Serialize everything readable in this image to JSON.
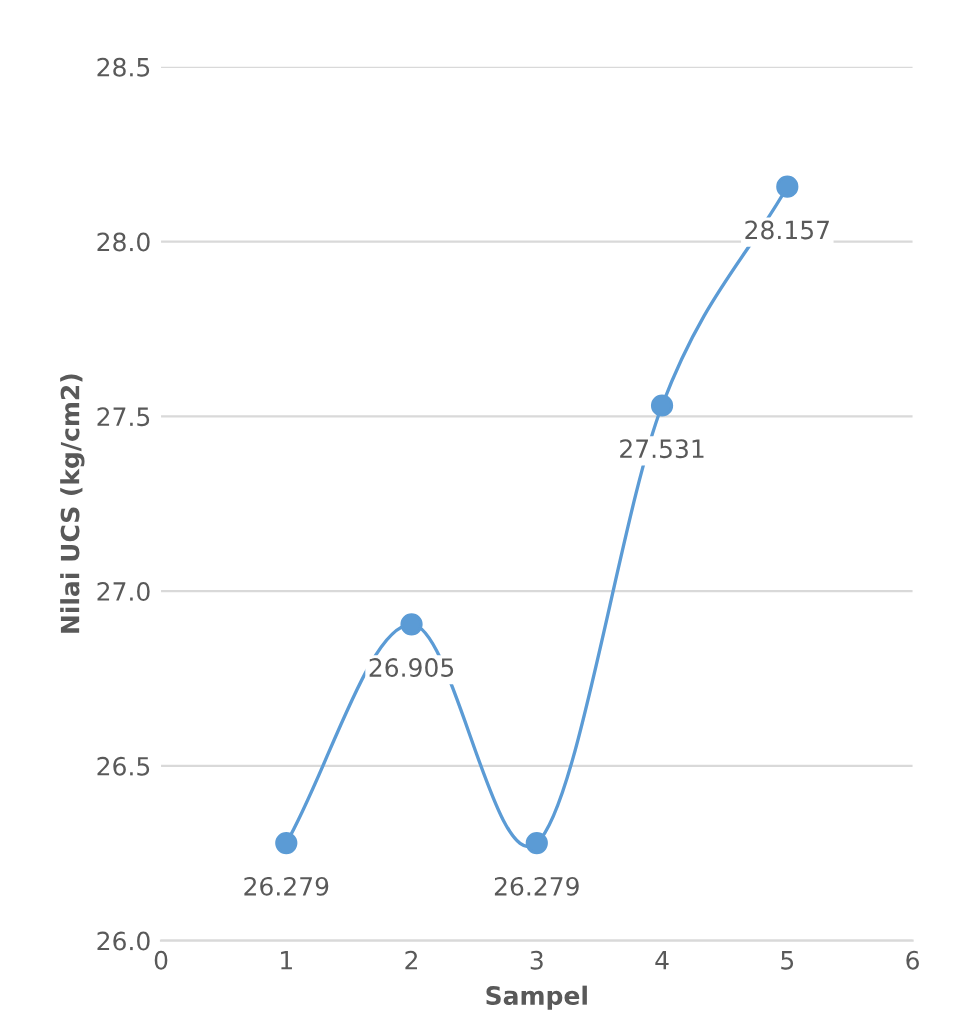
{
  "chart_data": {
    "type": "line",
    "xlabel": "Sampel",
    "ylabel": "Nilai UCS (kg/cm2)",
    "x": [
      1,
      2,
      3,
      4,
      5
    ],
    "series": [
      {
        "color": "#5b9bd5",
        "values": [
          26.279,
          26.905,
          26.279,
          27.531,
          28.157
        ]
      }
    ],
    "xlim": [
      0,
      6
    ],
    "xticks": [
      0,
      1,
      2,
      3,
      4,
      5,
      6
    ],
    "ylim": [
      26,
      28.5
    ],
    "yticks": [
      {
        "value": 26,
        "label": "26.0"
      },
      {
        "value": 26.5,
        "label": "26.5"
      },
      {
        "value": 27,
        "label": "27.0"
      },
      {
        "value": 27.5,
        "label": "27.5"
      },
      {
        "value": 28,
        "label": "28.0"
      },
      {
        "value": 28.5,
        "label": "28.5"
      }
    ],
    "grid": "y",
    "marker": "circle",
    "line_style": "solid",
    "data_labels": true
  }
}
